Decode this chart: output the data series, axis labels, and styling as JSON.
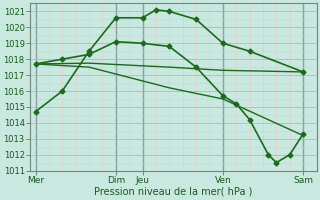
{
  "xlabel": "Pression niveau de la mer( hPa )",
  "bg_color": "#c8e8e0",
  "line_color": "#1a6b1a",
  "ylim": [
    1011,
    1021.5
  ],
  "yticks": [
    1011,
    1012,
    1013,
    1014,
    1015,
    1016,
    1017,
    1018,
    1019,
    1020,
    1021
  ],
  "x_major_ticks": [
    0,
    3,
    4,
    7,
    10
  ],
  "x_major_labels": [
    "Mer",
    "Dim",
    "Jeu",
    "Ven",
    "Sam"
  ],
  "xlim": [
    -0.2,
    10.5
  ],
  "line1_x": [
    0,
    1,
    2,
    3,
    4,
    4.5,
    5,
    6,
    7,
    8,
    10
  ],
  "line1_y": [
    1014.7,
    1016.0,
    1018.5,
    1020.6,
    1020.6,
    1021.1,
    1021.0,
    1020.5,
    1019.0,
    1018.5,
    1017.2
  ],
  "line2_x": [
    0,
    2,
    5,
    7,
    10
  ],
  "line2_y": [
    1017.7,
    1017.75,
    1017.5,
    1017.3,
    1017.2
  ],
  "line3_x": [
    0,
    2,
    5,
    7,
    10
  ],
  "line3_y": [
    1017.7,
    1017.5,
    1016.2,
    1015.5,
    1013.2
  ],
  "line4_x": [
    0,
    1,
    2,
    3,
    4,
    5,
    6,
    7,
    7.5,
    8,
    8.7,
    9,
    9.5,
    10
  ],
  "line4_y": [
    1017.7,
    1018.0,
    1018.3,
    1019.1,
    1019.0,
    1018.8,
    1017.5,
    1015.7,
    1015.2,
    1014.2,
    1012.0,
    1011.5,
    1012.0,
    1013.3
  ],
  "minor_grid_color": "#e8c8c8",
  "major_grid_color": "#a0b8b0",
  "major_vline_color": "#606878"
}
